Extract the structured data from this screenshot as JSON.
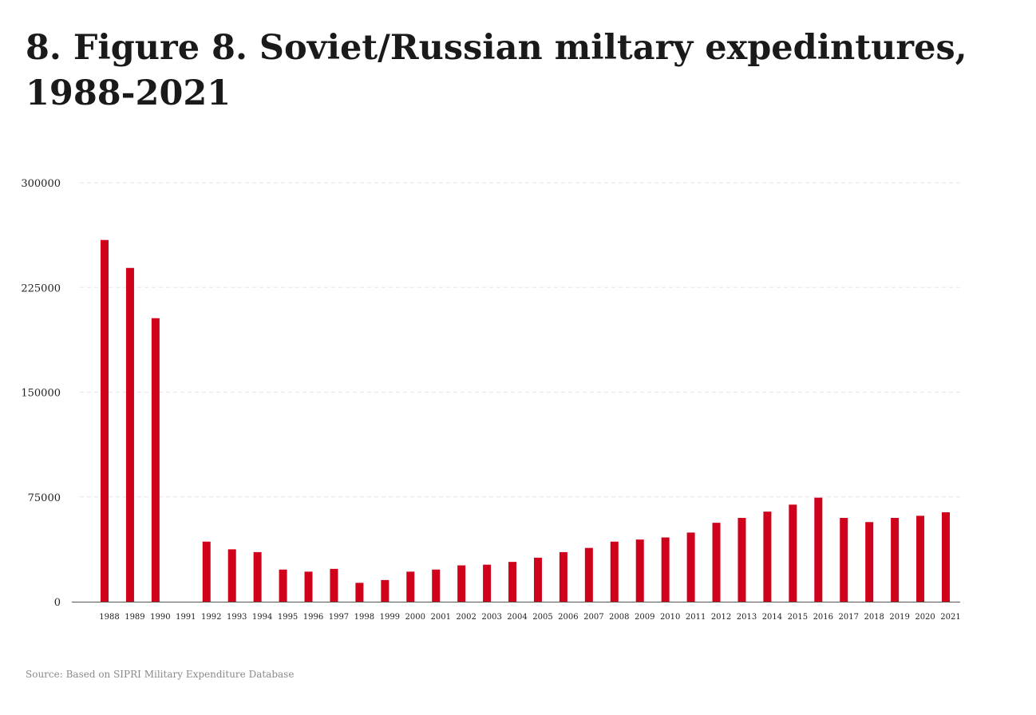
{
  "title": "8. Figure 8. Soviet/Russian miltary expedintures, 1988-2021",
  "source": "Source: Based on SIPRI Military Expenditure Database",
  "colors": {
    "bar": "#d0021b",
    "grid": "#e6e6e6",
    "axis": "#555555",
    "text": "#222222"
  },
  "chart_data": {
    "type": "bar",
    "title": "8. Figure 8. Soviet/Russian miltary expedintures, 1988-2021",
    "xlabel": "",
    "ylabel": "",
    "ylim": [
      0,
      300000
    ],
    "yticks": [
      "0",
      "75000",
      "150000",
      "225000",
      "300000"
    ],
    "grid": true,
    "categories": [
      "1988",
      "1989",
      "1990",
      "1991",
      "1992",
      "1993",
      "1994",
      "1995",
      "1996",
      "1997",
      "1998",
      "1999",
      "2000",
      "2001",
      "2002",
      "2003",
      "2004",
      "2005",
      "2006",
      "2007",
      "2008",
      "2009",
      "2010",
      "2011",
      "2012",
      "2013",
      "2014",
      "2015",
      "2016",
      "2017",
      "2018",
      "2019",
      "2020",
      "2021"
    ],
    "values": [
      259000,
      239000,
      203000,
      null,
      43000,
      37500,
      35500,
      23000,
      21500,
      23500,
      13500,
      15500,
      21500,
      23000,
      26000,
      26500,
      28500,
      31500,
      35500,
      38500,
      43000,
      44500,
      46000,
      49500,
      56500,
      60000,
      64500,
      69500,
      74500,
      60000,
      57000,
      60000,
      61500,
      64000
    ]
  }
}
